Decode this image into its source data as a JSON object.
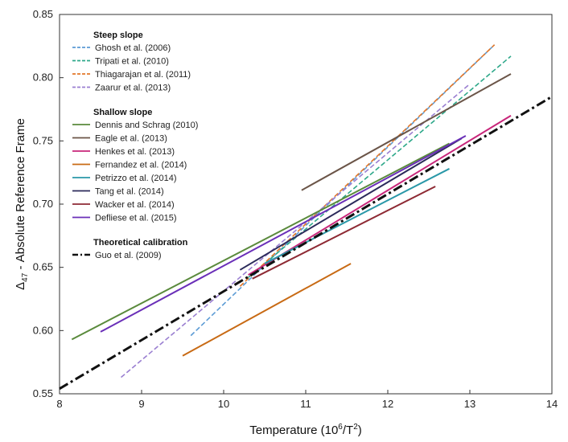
{
  "chart_data": {
    "type": "line",
    "title": "",
    "xlabel": "Temperature (10",
    "xlabel_sup": "6",
    "xlabel_tail": "/T",
    "xlabel_sup2": "2",
    "xlabel_end": ")",
    "ylabel_delta": "Δ",
    "ylabel_sub": "47",
    "ylabel_rest": " - Absolute Reference Frame",
    "xlim": [
      8,
      14
    ],
    "ylim": [
      0.55,
      0.85
    ],
    "xticks": [
      "8",
      "9",
      "10",
      "11",
      "12",
      "13",
      "14"
    ],
    "yticks": [
      "0.55",
      "0.60",
      "0.65",
      "0.70",
      "0.75",
      "0.80",
      "0.85"
    ],
    "grid": false,
    "legend_position": "top-left",
    "groups": [
      {
        "heading": "Steep slope",
        "series": [
          {
            "name": "Ghosh et al. (2006)",
            "color": "#5b9bd5",
            "dash": "dashed",
            "x": [
              9.6,
              13.3
            ],
            "y": [
              0.596,
              0.826
            ]
          },
          {
            "name": "Tripati et al. (2010)",
            "color": "#2ea88a",
            "dash": "dashed",
            "x": [
              10.3,
              13.5
            ],
            "y": [
              0.642,
              0.817
            ]
          },
          {
            "name": "Thiagarajan et al. (2011)",
            "color": "#e2772a",
            "dash": "dashed",
            "x": [
              10.2,
              13.3
            ],
            "y": [
              0.635,
              0.826
            ]
          },
          {
            "name": "Zaarur et al. (2013)",
            "color": "#9a7fd1",
            "dash": "dashed",
            "x": [
              8.75,
              13.0
            ],
            "y": [
              0.563,
              0.795
            ]
          }
        ]
      },
      {
        "heading": "Shallow slope",
        "series": [
          {
            "name": "Dennis and Schrag (2010)",
            "color": "#5a8a3c",
            "dash": "solid",
            "x": [
              8.15,
              12.75
            ],
            "y": [
              0.593,
              0.748
            ]
          },
          {
            "name": "Eagle et al. (2013)",
            "color": "#6b5548",
            "dash": "solid",
            "x": [
              10.95,
              13.5
            ],
            "y": [
              0.711,
              0.803
            ]
          },
          {
            "name": "Henkes et al. (2013)",
            "color": "#c8267a",
            "dash": "solid",
            "x": [
              10.3,
              13.5
            ],
            "y": [
              0.644,
              0.77
            ]
          },
          {
            "name": "Fernandez et al. (2014)",
            "color": "#c86a14",
            "dash": "solid",
            "x": [
              9.5,
              11.55
            ],
            "y": [
              0.58,
              0.653
            ]
          },
          {
            "name": "Petrizzo et al. (2014)",
            "color": "#2a98a8",
            "dash": "solid",
            "x": [
              10.5,
              12.75
            ],
            "y": [
              0.653,
              0.728
            ]
          },
          {
            "name": "Tang et al. (2014)",
            "color": "#2b2a5a",
            "dash": "solid",
            "x": [
              10.2,
              12.9
            ],
            "y": [
              0.648,
              0.752
            ]
          },
          {
            "name": "Wacker et al. (2014)",
            "color": "#8e2a34",
            "dash": "solid",
            "x": [
              10.35,
              12.58
            ],
            "y": [
              0.641,
              0.714
            ]
          },
          {
            "name": "Defliese et al. (2015)",
            "color": "#6a2fb8",
            "dash": "solid",
            "x": [
              8.5,
              12.95
            ],
            "y": [
              0.599,
              0.754
            ]
          }
        ]
      },
      {
        "heading": "Theoretical calibration",
        "series": [
          {
            "name": "Guo et al. (2009)",
            "color": "#111111",
            "dash": "dashdot",
            "x": [
              8.0,
              14.0
            ],
            "y": [
              0.554,
              0.785
            ]
          }
        ]
      }
    ]
  }
}
